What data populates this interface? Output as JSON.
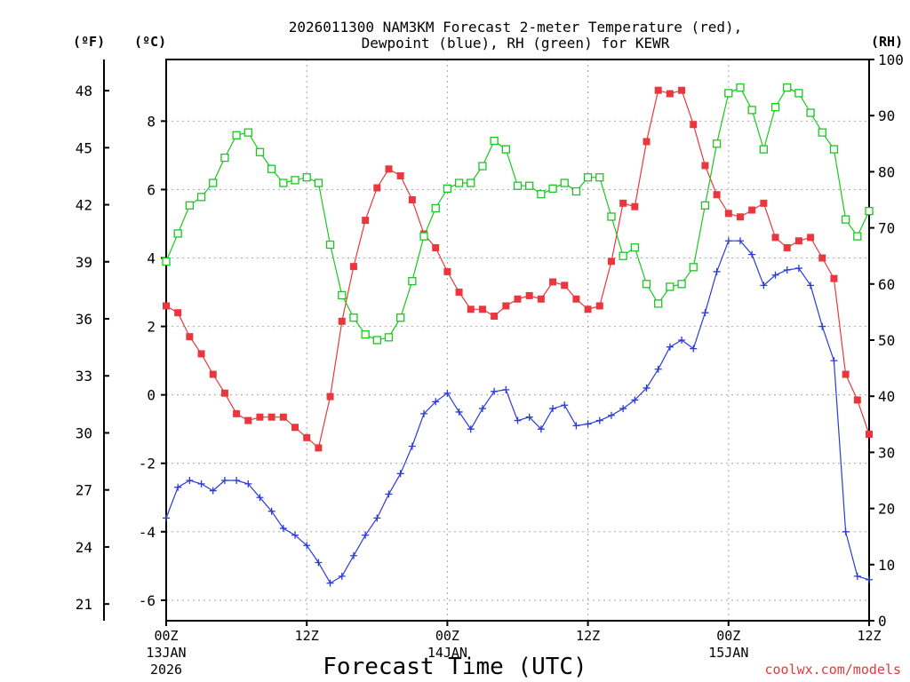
{
  "chart_data": {
    "type": "line",
    "title_line1": "2026011300 NAM3KM Forecast 2-meter Temperature (red),",
    "title_line2": "Dewpoint (blue), RH (green) for KEWR",
    "xlabel": "Forecast Time (UTC)",
    "credit": "coolwx.com/models",
    "unit_f": "(ºF)",
    "unit_c": "(ºC)",
    "unit_rh": "(RH)",
    "x_ticks": [
      {
        "hour": 0,
        "label": "00Z",
        "sub1": "13JAN",
        "sub2": "2026"
      },
      {
        "hour": 12,
        "label": "12Z",
        "sub1": "",
        "sub2": ""
      },
      {
        "hour": 24,
        "label": "00Z",
        "sub1": "14JAN",
        "sub2": ""
      },
      {
        "hour": 36,
        "label": "12Z",
        "sub1": "",
        "sub2": ""
      },
      {
        "hour": 48,
        "label": "00Z",
        "sub1": "15JAN",
        "sub2": ""
      },
      {
        "hour": 60,
        "label": "12Z",
        "sub1": "",
        "sub2": ""
      }
    ],
    "xlim": [
      0,
      60
    ],
    "ylim_c": [
      -6.6,
      9.8
    ],
    "ylim_rh": [
      0,
      100
    ],
    "yticks_c": [
      -6,
      -4,
      -2,
      0,
      2,
      4,
      6,
      8
    ],
    "yticks_f": [
      21,
      24,
      27,
      30,
      33,
      36,
      39,
      42,
      45,
      48
    ],
    "yticks_rh": [
      0,
      10,
      20,
      30,
      40,
      50,
      60,
      70,
      80,
      90,
      100
    ],
    "colors": {
      "temperature": "#e8383d",
      "dewpoint": "#2b3bd6",
      "rh": "#19c81e",
      "grid": "#a8a8a8"
    },
    "series": [
      {
        "name": "Temperature",
        "unit": "C",
        "x": [
          0,
          1,
          2,
          3,
          4,
          5,
          6,
          7,
          8,
          9,
          10,
          11,
          12,
          13,
          14,
          15,
          16,
          17,
          18,
          19,
          20,
          21,
          22,
          23,
          24,
          25,
          26,
          27,
          28,
          29,
          30,
          31,
          32,
          33,
          34,
          35,
          36,
          37,
          38,
          39,
          40,
          41,
          42,
          43,
          44,
          45,
          46,
          47,
          48,
          49,
          50,
          51,
          52,
          53,
          54,
          55,
          56,
          57,
          58,
          59,
          60
        ],
        "values": [
          2.6,
          2.4,
          1.7,
          1.2,
          0.6,
          0.05,
          -0.55,
          -0.75,
          -0.65,
          -0.65,
          -0.65,
          -0.95,
          -1.25,
          -1.55,
          -0.05,
          2.15,
          3.75,
          5.1,
          6.05,
          6.6,
          6.4,
          5.7,
          4.7,
          4.3,
          3.6,
          3.0,
          2.5,
          2.5,
          2.3,
          2.6,
          2.8,
          2.9,
          2.8,
          3.3,
          3.2,
          2.8,
          2.5,
          2.6,
          3.9,
          5.6,
          5.5,
          7.4,
          8.9,
          8.8,
          8.9,
          7.9,
          6.7,
          5.85,
          5.3,
          5.2,
          5.4,
          5.6,
          4.6,
          4.3,
          4.5,
          4.6,
          4.0,
          3.4,
          0.6,
          -0.15,
          -1.15
        ]
      },
      {
        "name": "Dewpoint",
        "unit": "C",
        "x": [
          0,
          1,
          2,
          3,
          4,
          5,
          6,
          7,
          8,
          9,
          10,
          11,
          12,
          13,
          14,
          15,
          16,
          17,
          18,
          19,
          20,
          21,
          22,
          23,
          24,
          25,
          26,
          27,
          28,
          29,
          30,
          31,
          32,
          33,
          34,
          35,
          36,
          37,
          38,
          39,
          40,
          41,
          42,
          43,
          44,
          45,
          46,
          47,
          48,
          49,
          50,
          51,
          52,
          53,
          54,
          55,
          56,
          57,
          58,
          59,
          60
        ],
        "values": [
          -3.6,
          -2.7,
          -2.5,
          -2.6,
          -2.8,
          -2.5,
          -2.5,
          -2.6,
          -3.0,
          -3.4,
          -3.9,
          -4.1,
          -4.4,
          -4.9,
          -5.5,
          -5.3,
          -4.7,
          -4.1,
          -3.6,
          -2.9,
          -2.3,
          -1.5,
          -0.55,
          -0.2,
          0.05,
          -0.5,
          -1.0,
          -0.4,
          0.1,
          0.15,
          -0.75,
          -0.65,
          -1.0,
          -0.4,
          -0.3,
          -0.9,
          -0.85,
          -0.75,
          -0.6,
          -0.4,
          -0.15,
          0.2,
          0.75,
          1.4,
          1.6,
          1.35,
          2.4,
          3.6,
          4.5,
          4.5,
          4.1,
          3.2,
          3.5,
          3.65,
          3.7,
          3.2,
          2.0,
          1.0,
          -4.0,
          -5.3,
          -5.4
        ]
      },
      {
        "name": "RH",
        "unit": "%",
        "x": [
          0,
          1,
          2,
          3,
          4,
          5,
          6,
          7,
          8,
          9,
          10,
          11,
          12,
          13,
          14,
          15,
          16,
          17,
          18,
          19,
          20,
          21,
          22,
          23,
          24,
          25,
          26,
          27,
          28,
          29,
          30,
          31,
          32,
          33,
          34,
          35,
          36,
          37,
          38,
          39,
          40,
          41,
          42,
          43,
          44,
          45,
          46,
          47,
          48,
          49,
          50,
          51,
          52,
          53,
          54,
          55,
          56,
          57,
          58,
          59,
          60
        ],
        "values": [
          64,
          69,
          74,
          75.5,
          78,
          82.5,
          86.5,
          87,
          83.5,
          80.5,
          78,
          78.5,
          79,
          78,
          67,
          58,
          54,
          51,
          50,
          50.5,
          54,
          60.5,
          68.5,
          73.5,
          77,
          78,
          78,
          81,
          85.5,
          84,
          77.5,
          77.5,
          76,
          77,
          78,
          76.5,
          79,
          79,
          72,
          65,
          66.5,
          60,
          56.5,
          59.5,
          60,
          63,
          74,
          85,
          94,
          95,
          91,
          84,
          91.5,
          95,
          94,
          90.5,
          87,
          84,
          71.5,
          68.5,
          73
        ]
      }
    ]
  }
}
